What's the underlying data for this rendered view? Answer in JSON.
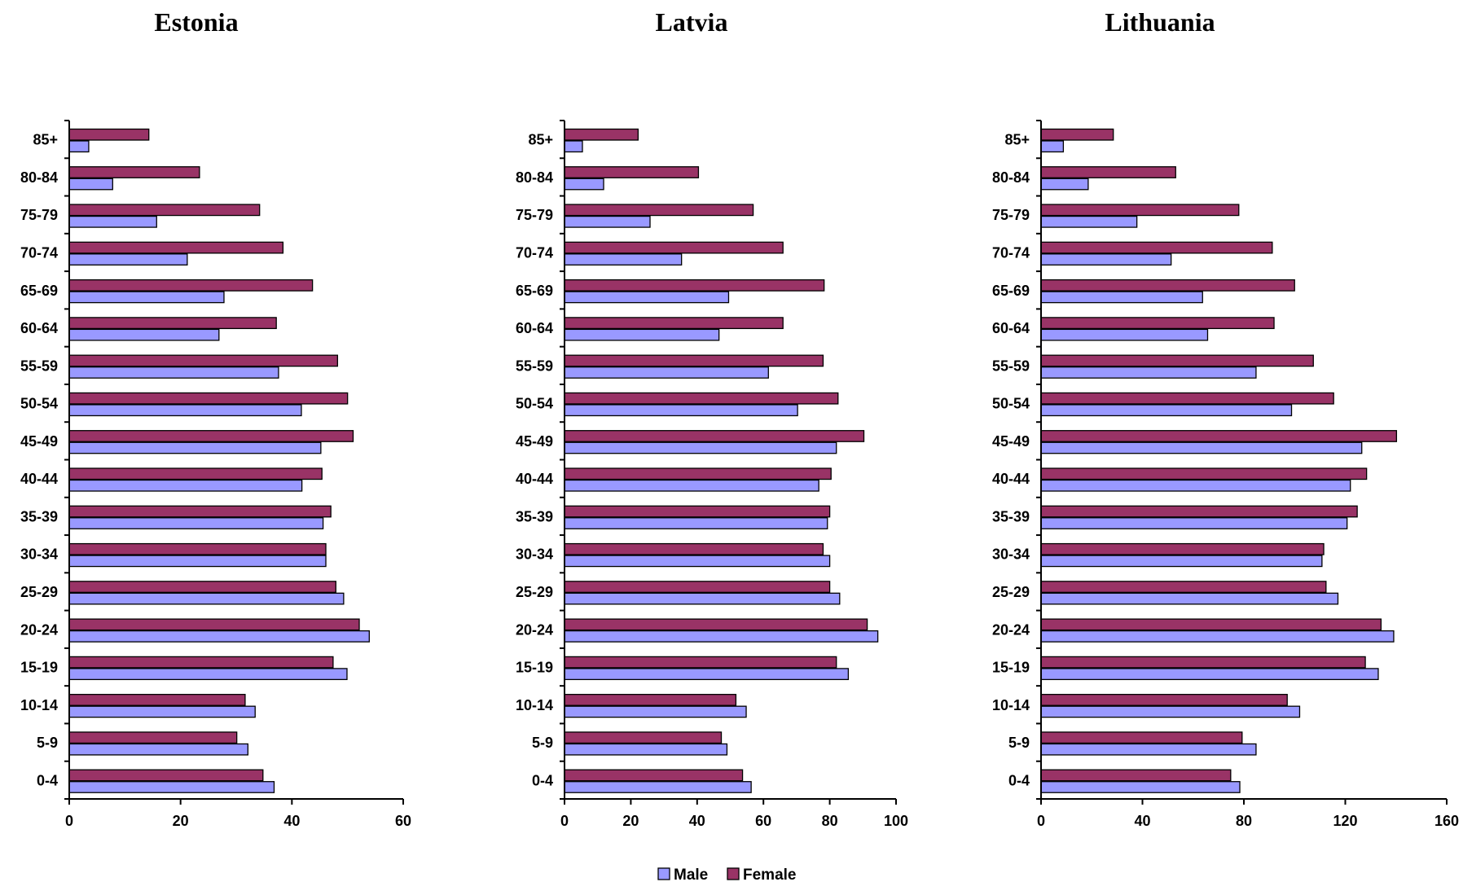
{
  "chart_data": [
    {
      "type": "bar",
      "orientation": "horizontal",
      "title": "Estonia",
      "xlabel": "",
      "ylabel": "",
      "categories": [
        "0-4",
        "5-9",
        "10-14",
        "15-19",
        "20-24",
        "25-29",
        "30-34",
        "35-39",
        "40-44",
        "45-49",
        "50-54",
        "55-59",
        "60-64",
        "65-69",
        "70-74",
        "75-79",
        "80-84",
        "85+"
      ],
      "xlim": [
        0,
        60
      ],
      "xticks": [
        0,
        20,
        40,
        60
      ],
      "series": [
        {
          "name": "Male",
          "values": [
            36.8,
            32.1,
            33.4,
            49.9,
            53.9,
            49.3,
            46.1,
            45.6,
            41.8,
            45.2,
            41.7,
            37.6,
            26.9,
            27.8,
            21.2,
            15.7,
            7.8,
            3.5
          ]
        },
        {
          "name": "Female",
          "values": [
            34.8,
            30.1,
            31.6,
            47.4,
            52.1,
            47.9,
            46.1,
            47.0,
            45.4,
            51.0,
            50.0,
            48.2,
            37.2,
            43.7,
            38.4,
            34.2,
            23.4,
            14.3
          ]
        }
      ]
    },
    {
      "type": "bar",
      "orientation": "horizontal",
      "title": "Latvia",
      "xlabel": "",
      "ylabel": "",
      "categories": [
        "0-4",
        "5-9",
        "10-14",
        "15-19",
        "20-24",
        "25-29",
        "30-34",
        "35-39",
        "40-44",
        "45-49",
        "50-54",
        "55-59",
        "60-64",
        "65-69",
        "70-74",
        "75-79",
        "80-84",
        "85+"
      ],
      "xlim": [
        0,
        100
      ],
      "xticks": [
        0,
        20,
        40,
        60,
        80,
        100
      ],
      "series": [
        {
          "name": "Male",
          "values": [
            56.3,
            49.0,
            54.8,
            85.6,
            94.5,
            83.0,
            80.0,
            79.3,
            76.7,
            82.0,
            70.3,
            61.5,
            46.6,
            49.5,
            35.3,
            25.8,
            11.8,
            5.4
          ]
        },
        {
          "name": "Female",
          "values": [
            53.7,
            47.3,
            51.7,
            82.0,
            91.3,
            80.0,
            78.0,
            80.0,
            80.4,
            90.3,
            82.5,
            78.0,
            65.9,
            78.3,
            65.9,
            56.9,
            40.4,
            22.2
          ]
        }
      ]
    },
    {
      "type": "bar",
      "orientation": "horizontal",
      "title": "Lithuania",
      "xlabel": "",
      "ylabel": "",
      "categories": [
        "0-4",
        "5-9",
        "10-14",
        "15-19",
        "20-24",
        "25-29",
        "30-34",
        "35-39",
        "40-44",
        "45-49",
        "50-54",
        "55-59",
        "60-64",
        "65-69",
        "70-74",
        "75-79",
        "80-84",
        "85+"
      ],
      "xlim": [
        0,
        160
      ],
      "xticks": [
        0,
        40,
        80,
        120,
        160
      ],
      "series": [
        {
          "name": "Male",
          "values": [
            78.4,
            84.8,
            102.0,
            133.0,
            139.1,
            117.1,
            110.8,
            120.7,
            122.0,
            126.5,
            98.8,
            84.8,
            65.7,
            63.7,
            51.3,
            37.8,
            18.6,
            8.8
          ]
        },
        {
          "name": "Female",
          "values": [
            74.8,
            79.3,
            97.1,
            127.9,
            134.1,
            112.4,
            111.5,
            124.7,
            128.4,
            140.2,
            115.4,
            107.4,
            91.9,
            100.0,
            91.2,
            78.0,
            53.1,
            28.5
          ]
        }
      ]
    }
  ],
  "legend": {
    "placement": "bottom",
    "items": [
      {
        "name": "Male",
        "color": "#9999ff"
      },
      {
        "name": "Female",
        "color": "#993366"
      }
    ]
  },
  "colors": {
    "male": "#9999ff",
    "female": "#993366"
  }
}
